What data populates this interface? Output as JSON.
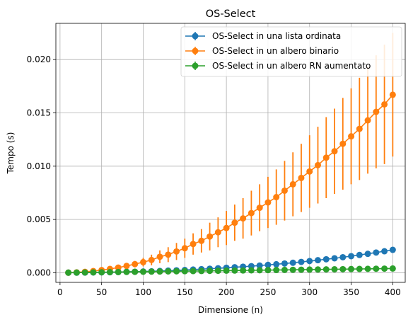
{
  "chart_data": {
    "type": "line",
    "title": "OS-Select",
    "xlabel": "Dimensione (n)",
    "ylabel": "Tempo (s)",
    "xlim": [
      -5,
      415
    ],
    "ylim": [
      -0.0009,
      0.0234
    ],
    "xticks": [
      0,
      50,
      100,
      150,
      200,
      250,
      300,
      350,
      400
    ],
    "xtick_labels": [
      "0",
      "50",
      "100",
      "150",
      "200",
      "250",
      "300",
      "350",
      "400"
    ],
    "yticks": [
      0.0,
      0.005,
      0.01,
      0.015,
      0.02
    ],
    "ytick_labels": [
      "0.000",
      "0.005",
      "0.010",
      "0.015",
      "0.020"
    ],
    "grid": true,
    "legend_position": "upper-right",
    "x": [
      10,
      20,
      30,
      40,
      50,
      60,
      70,
      80,
      90,
      100,
      110,
      120,
      130,
      140,
      150,
      160,
      170,
      180,
      190,
      200,
      210,
      220,
      230,
      240,
      250,
      260,
      270,
      280,
      290,
      300,
      310,
      320,
      330,
      340,
      350,
      360,
      370,
      380,
      390,
      400
    ],
    "series": [
      {
        "name": "OS-Select in una lista ordinata",
        "color": "#1f77b4",
        "values": [
          1e-05,
          1e-05,
          2e-05,
          3e-05,
          4e-05,
          5e-05,
          7e-05,
          9e-05,
          0.0001,
          0.00012,
          0.00014,
          0.00017,
          0.0002,
          0.00023,
          0.00026,
          0.0003,
          0.00034,
          0.00038,
          0.00042,
          0.00047,
          0.00052,
          0.00057,
          0.00062,
          0.00068,
          0.00074,
          0.0008,
          0.00087,
          0.00094,
          0.00102,
          0.0011,
          0.00118,
          0.00127,
          0.00136,
          0.00146,
          0.00156,
          0.00167,
          0.00178,
          0.0019,
          0.00202,
          0.00215
        ],
        "errors": [
          1e-05,
          1e-05,
          1e-05,
          1e-05,
          2e-05,
          2e-05,
          2e-05,
          3e-05,
          3e-05,
          3e-05,
          3e-05,
          4e-05,
          4e-05,
          4e-05,
          5e-05,
          5e-05,
          5e-05,
          6e-05,
          6e-05,
          6e-05,
          7e-05,
          7e-05,
          7e-05,
          8e-05,
          8e-05,
          8e-05,
          9e-05,
          9e-05,
          0.0001,
          0.0001,
          0.0001,
          0.00011,
          0.00011,
          0.00012,
          0.00012,
          0.00013,
          0.00013,
          0.00014,
          0.00015,
          0.00015
        ]
      },
      {
        "name": "OS-Select in un albero binario",
        "color": "#ff7f0e",
        "values": [
          1e-05,
          4e-05,
          9e-05,
          0.00016,
          0.00025,
          0.00036,
          0.00049,
          0.00064,
          0.00081,
          0.001,
          0.0012,
          0.0015,
          0.0017,
          0.002,
          0.0023,
          0.0027,
          0.003,
          0.0034,
          0.0038,
          0.0042,
          0.0047,
          0.0051,
          0.0056,
          0.0061,
          0.0066,
          0.0071,
          0.0077,
          0.0083,
          0.0089,
          0.0095,
          0.0101,
          0.0108,
          0.0114,
          0.0121,
          0.0128,
          0.0135,
          0.0143,
          0.0151,
          0.0158,
          0.0167
        ],
        "errors": [
          1e-05,
          2e-05,
          4e-05,
          7e-05,
          0.0001,
          0.00014,
          0.00019,
          0.00025,
          0.0003,
          0.0004,
          0.0005,
          0.0006,
          0.0007,
          0.0008,
          0.0009,
          0.001,
          0.0011,
          0.0013,
          0.0014,
          0.0016,
          0.0017,
          0.0019,
          0.0021,
          0.0022,
          0.0024,
          0.0026,
          0.0028,
          0.003,
          0.0032,
          0.0034,
          0.0036,
          0.0038,
          0.004,
          0.0043,
          0.0045,
          0.0048,
          0.005,
          0.0053,
          0.0056,
          0.0058
        ]
      },
      {
        "name": "OS-Select in un albero RN aumentato",
        "color": "#2ca02c",
        "values": [
          1e-05,
          2e-05,
          3e-05,
          4e-05,
          5e-05,
          6e-05,
          7e-05,
          8e-05,
          9e-05,
          0.0001,
          0.00011,
          0.00012,
          0.00013,
          0.00014,
          0.00015,
          0.00016,
          0.00017,
          0.00018,
          0.00019,
          0.0002,
          0.00021,
          0.00022,
          0.00023,
          0.00024,
          0.00025,
          0.00026,
          0.00027,
          0.00028,
          0.00029,
          0.0003,
          0.00031,
          0.00032,
          0.00033,
          0.00034,
          0.00035,
          0.00036,
          0.00037,
          0.00038,
          0.00039,
          0.0004
        ],
        "errors": [
          1e-05,
          1e-05,
          1e-05,
          1e-05,
          1e-05,
          1e-05,
          1e-05,
          1e-05,
          1e-05,
          1e-05,
          2e-05,
          2e-05,
          2e-05,
          2e-05,
          2e-05,
          2e-05,
          2e-05,
          2e-05,
          2e-05,
          2e-05,
          3e-05,
          3e-05,
          3e-05,
          3e-05,
          3e-05,
          3e-05,
          3e-05,
          3e-05,
          3e-05,
          3e-05,
          4e-05,
          4e-05,
          4e-05,
          4e-05,
          4e-05,
          4e-05,
          4e-05,
          4e-05,
          4e-05,
          4e-05
        ]
      }
    ]
  }
}
